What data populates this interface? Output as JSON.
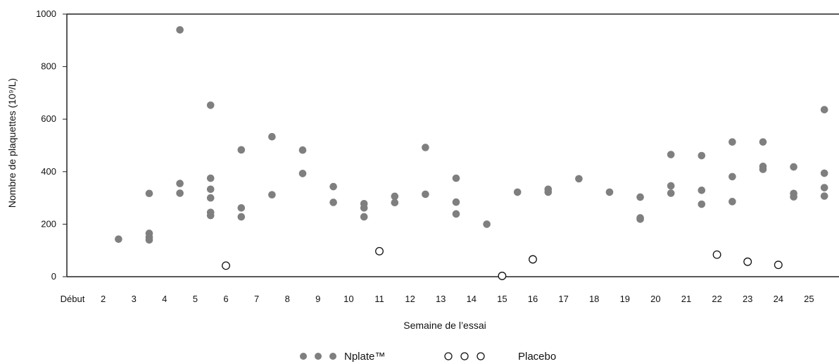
{
  "chart_data": {
    "type": "scatter",
    "xlabel": "Semaine de l’essai",
    "ylabel": "Nombre de plaquettes (10⁹/L)",
    "ylim": [
      0,
      1000
    ],
    "yticks": [
      "0",
      "200",
      "400",
      "600",
      "800",
      "1000"
    ],
    "xticks": [
      "Début",
      "2",
      "3",
      "4",
      "5",
      "6",
      "7",
      "8",
      "9",
      "10",
      "11",
      "12",
      "13",
      "14",
      "15",
      "16",
      "17",
      "18",
      "19",
      "20",
      "21",
      "22",
      "23",
      "24",
      "25"
    ],
    "grid": false,
    "legend_position": "bottom-center",
    "series": [
      {
        "name": "Nplate™",
        "marker": "filled-circle",
        "color": "#7f7f7f",
        "points": [
          {
            "x": 2.5,
            "y": 143
          },
          {
            "x": 3.5,
            "y": 317
          },
          {
            "x": 3.5,
            "y": 165
          },
          {
            "x": 3.5,
            "y": 150
          },
          {
            "x": 3.5,
            "y": 140
          },
          {
            "x": 4.5,
            "y": 940
          },
          {
            "x": 4.5,
            "y": 355
          },
          {
            "x": 4.5,
            "y": 318
          },
          {
            "x": 5.5,
            "y": 653
          },
          {
            "x": 5.5,
            "y": 375
          },
          {
            "x": 5.5,
            "y": 333
          },
          {
            "x": 5.5,
            "y": 300
          },
          {
            "x": 5.5,
            "y": 245
          },
          {
            "x": 5.5,
            "y": 233
          },
          {
            "x": 6.5,
            "y": 483
          },
          {
            "x": 6.5,
            "y": 262
          },
          {
            "x": 6.5,
            "y": 228
          },
          {
            "x": 7.5,
            "y": 533
          },
          {
            "x": 7.5,
            "y": 312
          },
          {
            "x": 8.5,
            "y": 482
          },
          {
            "x": 8.5,
            "y": 393
          },
          {
            "x": 9.5,
            "y": 343
          },
          {
            "x": 9.5,
            "y": 283
          },
          {
            "x": 10.5,
            "y": 278
          },
          {
            "x": 10.5,
            "y": 262
          },
          {
            "x": 10.5,
            "y": 228
          },
          {
            "x": 11.5,
            "y": 306
          },
          {
            "x": 11.5,
            "y": 282
          },
          {
            "x": 12.5,
            "y": 492
          },
          {
            "x": 12.5,
            "y": 314
          },
          {
            "x": 13.5,
            "y": 375
          },
          {
            "x": 13.5,
            "y": 284
          },
          {
            "x": 13.5,
            "y": 239
          },
          {
            "x": 14.5,
            "y": 200
          },
          {
            "x": 15.5,
            "y": 322
          },
          {
            "x": 16.5,
            "y": 333
          },
          {
            "x": 16.5,
            "y": 322
          },
          {
            "x": 17.5,
            "y": 373
          },
          {
            "x": 18.5,
            "y": 322
          },
          {
            "x": 19.5,
            "y": 303
          },
          {
            "x": 19.5,
            "y": 224
          },
          {
            "x": 19.5,
            "y": 219
          },
          {
            "x": 20.5,
            "y": 465
          },
          {
            "x": 20.5,
            "y": 346
          },
          {
            "x": 20.5,
            "y": 318
          },
          {
            "x": 21.5,
            "y": 461
          },
          {
            "x": 21.5,
            "y": 329
          },
          {
            "x": 21.5,
            "y": 276
          },
          {
            "x": 22.5,
            "y": 513
          },
          {
            "x": 22.5,
            "y": 381
          },
          {
            "x": 22.5,
            "y": 286
          },
          {
            "x": 23.5,
            "y": 513
          },
          {
            "x": 23.5,
            "y": 420
          },
          {
            "x": 23.5,
            "y": 409
          },
          {
            "x": 24.5,
            "y": 418
          },
          {
            "x": 24.5,
            "y": 317
          },
          {
            "x": 24.5,
            "y": 304
          },
          {
            "x": 25.5,
            "y": 636
          },
          {
            "x": 25.5,
            "y": 394
          },
          {
            "x": 25.5,
            "y": 339
          },
          {
            "x": 25.5,
            "y": 307
          }
        ]
      },
      {
        "name": "Placebo",
        "marker": "open-circle",
        "color": "#111111",
        "points": [
          {
            "x": 6,
            "y": 42
          },
          {
            "x": 11,
            "y": 97
          },
          {
            "x": 15,
            "y": 3
          },
          {
            "x": 16,
            "y": 66
          },
          {
            "x": 22,
            "y": 84
          },
          {
            "x": 23,
            "y": 57
          },
          {
            "x": 24,
            "y": 45
          }
        ]
      }
    ]
  }
}
